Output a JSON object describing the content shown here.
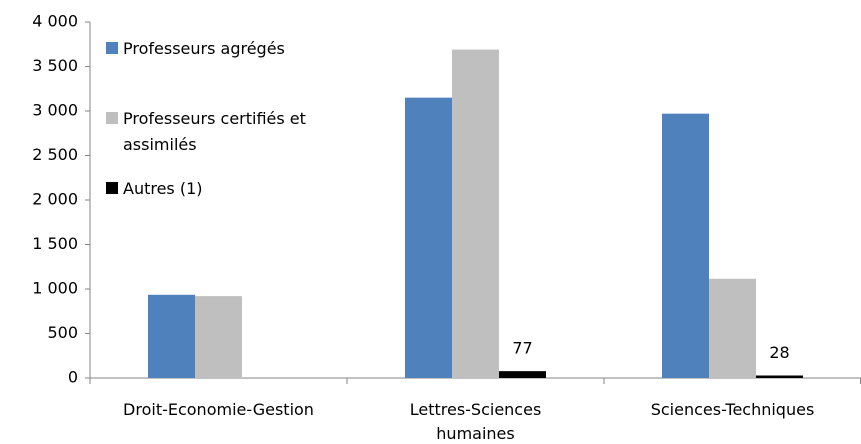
{
  "chart_data": {
    "type": "bar",
    "categories": [
      "Droit-Economie-Gestion",
      "Lettres-Sciences humaines",
      "Sciences-Techniques"
    ],
    "series": [
      {
        "name": "Professeurs agrégés",
        "color": "#4f81bd",
        "values": [
          935,
          3150,
          2970
        ]
      },
      {
        "name": "Professeurs certifiés et assimilés",
        "color": "#bfbfbf",
        "values": [
          920,
          3690,
          1115
        ]
      },
      {
        "name": "Autres (1)",
        "color": "#000000",
        "values": [
          null,
          77,
          28
        ],
        "show_labels": true
      }
    ],
    "ylim": [
      0,
      4000
    ],
    "yticks": [
      0,
      {
        "value": 500,
        "label": "500"
      },
      {
        "value": 1000,
        "label": "1 000"
      },
      {
        "value": 1500,
        "label": "1 500"
      },
      {
        "value": 2000,
        "label": "2 000"
      },
      {
        "value": 2500,
        "label": "2 500"
      },
      {
        "value": 3000,
        "label": "3 000"
      },
      {
        "value": 3500,
        "label": "3 500"
      },
      {
        "value": 4000,
        "label": "4 000"
      }
    ],
    "grid": false,
    "legend": "top-left"
  }
}
